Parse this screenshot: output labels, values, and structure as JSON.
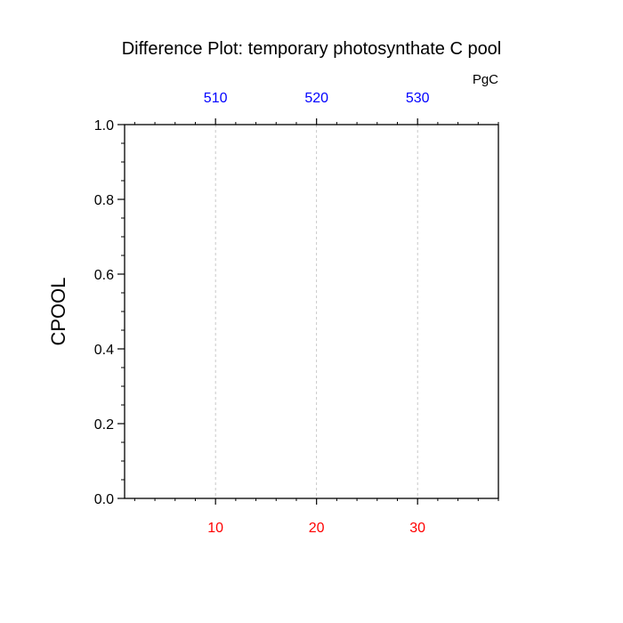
{
  "chart_data": {
    "type": "line",
    "title": "Difference Plot: temporary photosynthate C pool",
    "units": "PgC",
    "ylabel": "CPOOL",
    "xlabel": "",
    "xlim": [
      1,
      38
    ],
    "ylim": [
      0,
      1
    ],
    "x_ticks": [
      10,
      20,
      30
    ],
    "x_tick_labels": [
      "10",
      "20",
      "30"
    ],
    "x_minor_step": 2,
    "top_axis_ticks": [
      10,
      20,
      30
    ],
    "top_axis_labels": [
      "510",
      "520",
      "530"
    ],
    "y_ticks": [
      0,
      0.2,
      0.4,
      0.6,
      0.8,
      1.0
    ],
    "y_tick_labels": [
      "0.0",
      "0.2",
      "0.4",
      "0.6",
      "0.8",
      "1.0"
    ],
    "y_minor_step": 0.05,
    "grid": "vertical dashed at major x ticks",
    "series": []
  },
  "colors": {
    "bottom_tick_labels": "#ff0000",
    "top_tick_labels": "#0000ff",
    "axes": "#000000",
    "grid": "#bbbbbb"
  }
}
